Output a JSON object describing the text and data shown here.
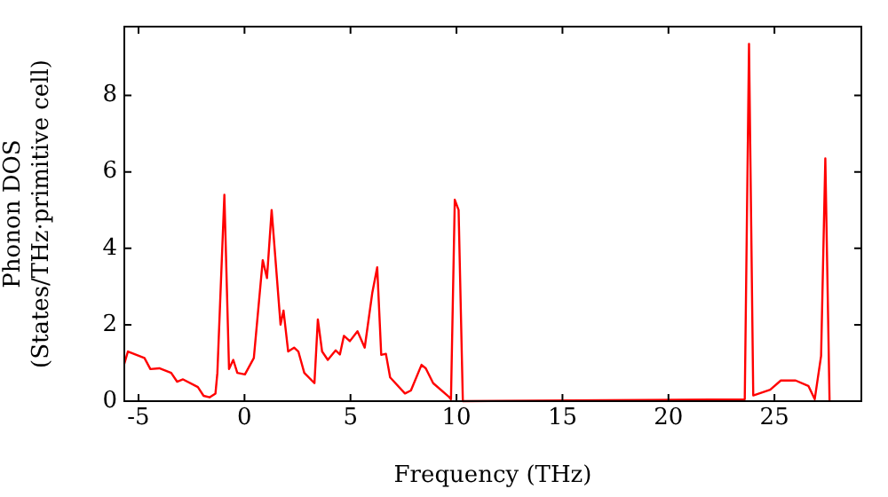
{
  "chart_data": {
    "type": "line",
    "xlabel": "Frequency (THz)",
    "ylabel": "Phonon DOS\n(States/THz·primitive cell)",
    "x": [
      -5.67,
      -5.5,
      -4.72,
      -4.44,
      -4.02,
      -3.46,
      -3.18,
      -2.9,
      -2.2,
      -1.93,
      -1.65,
      -1.37,
      -1.28,
      -0.95,
      -0.73,
      -0.53,
      -0.34,
      0.02,
      0.44,
      0.86,
      1.06,
      1.28,
      1.7,
      1.84,
      2.06,
      2.34,
      2.54,
      2.82,
      3.3,
      3.46,
      3.66,
      3.93,
      4.3,
      4.5,
      4.69,
      4.97,
      5.33,
      5.67,
      6.03,
      6.26,
      6.45,
      6.67,
      6.87,
      7.57,
      7.85,
      8.35,
      8.55,
      8.9,
      9.63,
      9.74,
      9.92,
      10.1,
      10.3,
      23.6,
      23.8,
      24.0,
      24.8,
      25.3,
      26.0,
      26.6,
      26.9,
      27.2,
      27.4,
      27.6
    ],
    "series": [
      {
        "color": "#ff0000",
        "values": [
          0.98,
          1.3,
          1.13,
          0.84,
          0.86,
          0.74,
          0.51,
          0.57,
          0.37,
          0.14,
          0.1,
          0.2,
          0.74,
          5.4,
          0.84,
          1.08,
          0.74,
          0.7,
          1.13,
          3.69,
          3.22,
          5.0,
          2.0,
          2.37,
          1.3,
          1.4,
          1.3,
          0.74,
          0.47,
          2.14,
          1.3,
          1.08,
          1.33,
          1.22,
          1.71,
          1.57,
          1.83,
          1.4,
          2.84,
          3.5,
          1.21,
          1.24,
          0.62,
          0.2,
          0.28,
          0.95,
          0.86,
          0.47,
          0.12,
          0.05,
          5.27,
          5.0,
          0,
          0.05,
          9.35,
          0.15,
          0.3,
          0.54,
          0.54,
          0.4,
          0.05,
          1.18,
          6.35,
          0
        ]
      }
    ],
    "xlim": [
      -5.67,
      29.1
    ],
    "ylim": [
      0,
      9.8
    ],
    "xticks": [
      -5,
      0,
      5,
      10,
      15,
      20,
      25
    ],
    "yticks": [
      0,
      2,
      4,
      6,
      8
    ],
    "grid": false,
    "legend": false,
    "marker": "none",
    "line_style": "solid"
  }
}
